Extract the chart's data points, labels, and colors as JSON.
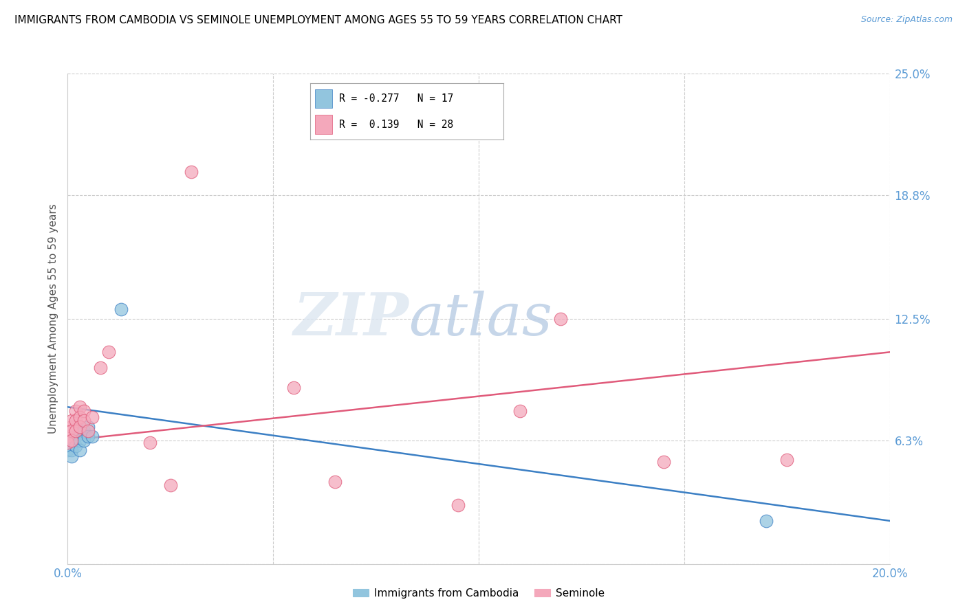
{
  "title": "IMMIGRANTS FROM CAMBODIA VS SEMINOLE UNEMPLOYMENT AMONG AGES 55 TO 59 YEARS CORRELATION CHART",
  "source": "Source: ZipAtlas.com",
  "ylabel": "Unemployment Among Ages 55 to 59 years",
  "xlim": [
    0.0,
    0.2
  ],
  "ylim": [
    0.0,
    0.25
  ],
  "ytick_labels_right": [
    "25.0%",
    "18.8%",
    "12.5%",
    "6.3%",
    ""
  ],
  "ytick_vals": [
    0.25,
    0.188,
    0.125,
    0.063,
    0.0
  ],
  "xtick_vals": [
    0.0,
    0.05,
    0.1,
    0.15,
    0.2
  ],
  "xtick_labels": [
    "0.0%",
    "",
    "",
    "",
    "20.0%"
  ],
  "legend_label1": "Immigrants from Cambodia",
  "legend_label2": "Seminole",
  "R1": -0.277,
  "N1": 17,
  "R2": 0.139,
  "N2": 28,
  "color_blue": "#92c5de",
  "color_pink": "#f4a8bb",
  "color_blue_line": "#3b7fc4",
  "color_pink_line": "#e05a7a",
  "watermark_zip": "ZIP",
  "watermark_atlas": "atlas",
  "blue_points": [
    [
      0.0,
      0.06
    ],
    [
      0.0,
      0.058
    ],
    [
      0.001,
      0.062
    ],
    [
      0.001,
      0.058
    ],
    [
      0.001,
      0.055
    ],
    [
      0.002,
      0.065
    ],
    [
      0.002,
      0.06
    ],
    [
      0.003,
      0.068
    ],
    [
      0.003,
      0.063
    ],
    [
      0.003,
      0.058
    ],
    [
      0.004,
      0.068
    ],
    [
      0.004,
      0.063
    ],
    [
      0.005,
      0.07
    ],
    [
      0.005,
      0.065
    ],
    [
      0.006,
      0.065
    ],
    [
      0.013,
      0.13
    ],
    [
      0.17,
      0.022
    ]
  ],
  "pink_points": [
    [
      0.0,
      0.065
    ],
    [
      0.0,
      0.062
    ],
    [
      0.001,
      0.07
    ],
    [
      0.001,
      0.073
    ],
    [
      0.001,
      0.068
    ],
    [
      0.001,
      0.063
    ],
    [
      0.002,
      0.078
    ],
    [
      0.002,
      0.073
    ],
    [
      0.002,
      0.068
    ],
    [
      0.003,
      0.08
    ],
    [
      0.003,
      0.075
    ],
    [
      0.003,
      0.07
    ],
    [
      0.004,
      0.078
    ],
    [
      0.004,
      0.073
    ],
    [
      0.005,
      0.068
    ],
    [
      0.006,
      0.075
    ],
    [
      0.008,
      0.1
    ],
    [
      0.01,
      0.108
    ],
    [
      0.02,
      0.062
    ],
    [
      0.025,
      0.04
    ],
    [
      0.03,
      0.2
    ],
    [
      0.055,
      0.09
    ],
    [
      0.065,
      0.042
    ],
    [
      0.095,
      0.03
    ],
    [
      0.11,
      0.078
    ],
    [
      0.12,
      0.125
    ],
    [
      0.145,
      0.052
    ],
    [
      0.175,
      0.053
    ]
  ],
  "blue_line": [
    [
      0.0,
      0.08
    ],
    [
      0.2,
      0.022
    ]
  ],
  "pink_line": [
    [
      0.0,
      0.063
    ],
    [
      0.2,
      0.108
    ]
  ]
}
